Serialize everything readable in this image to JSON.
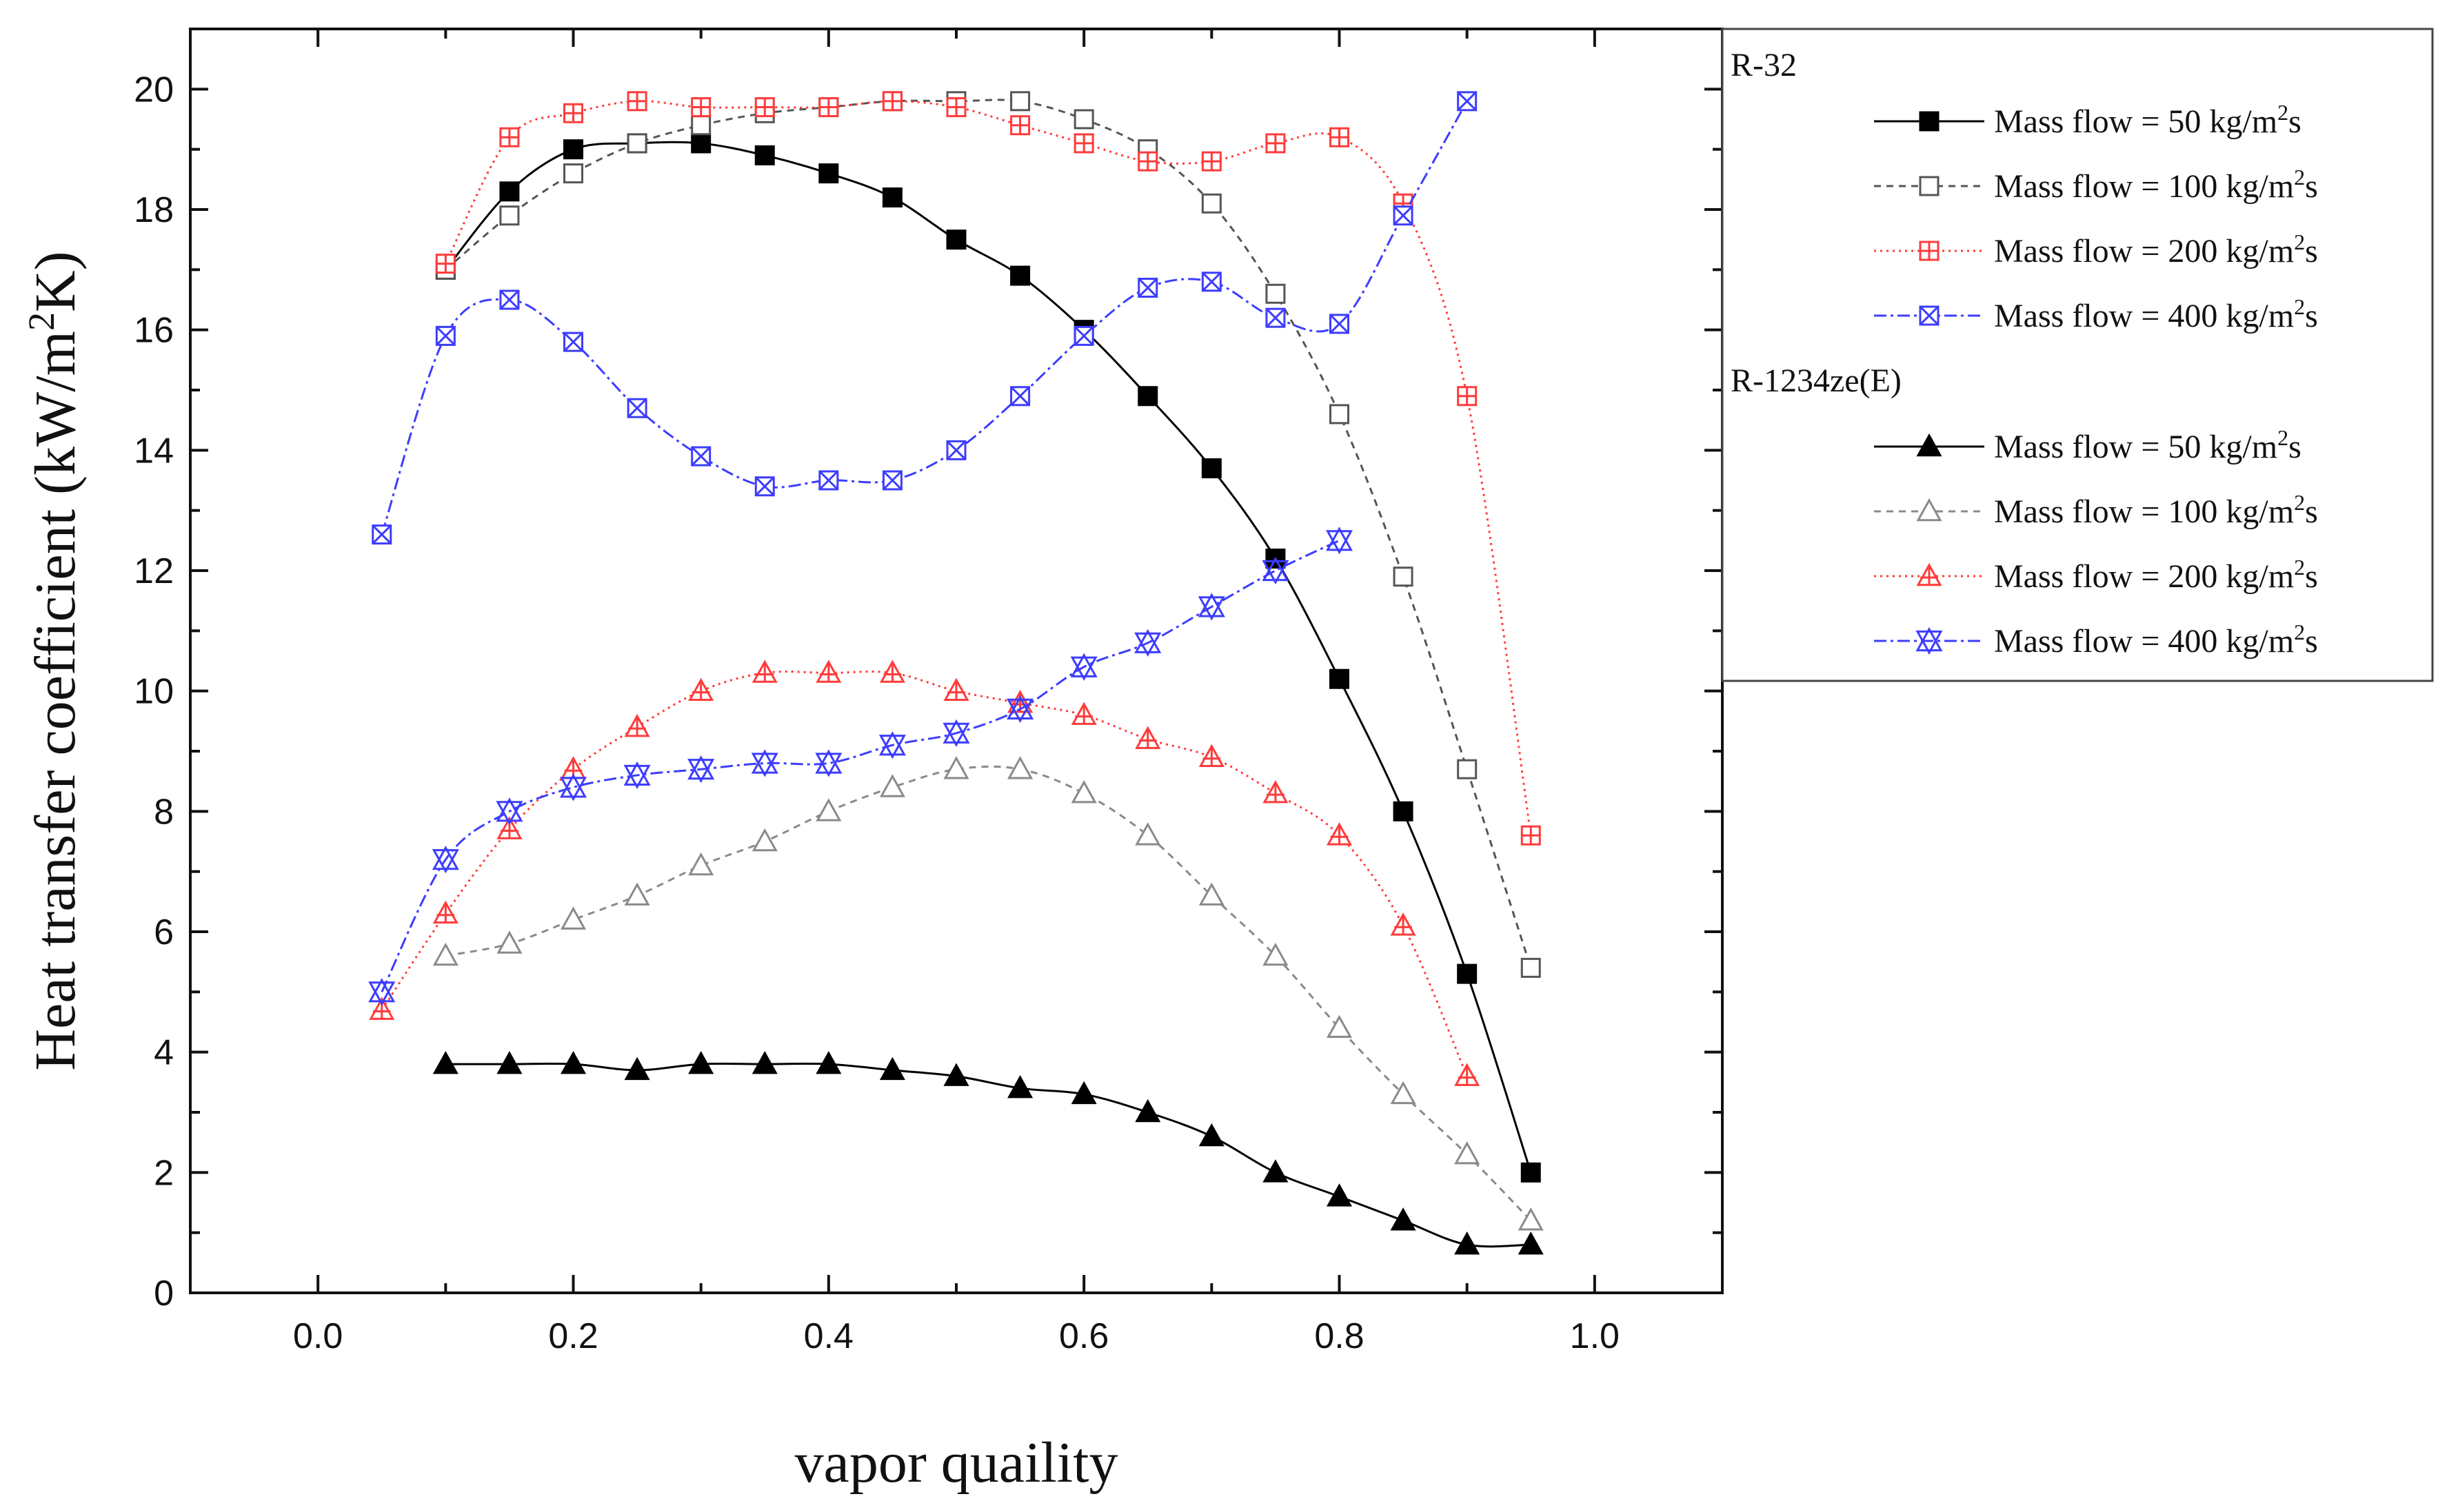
{
  "chart_data": {
    "type": "line",
    "title": "",
    "xlabel": "vapor quaility",
    "ylabel": "Heat transfer coefficient (kW/m2K)",
    "ylabel_parts": [
      "Heat transfer coefficient (kW/m",
      "2",
      "K)"
    ],
    "xlim": [
      -0.1,
      1.1
    ],
    "ylim": [
      0,
      21
    ],
    "x_ticks": [
      0.0,
      0.2,
      0.4,
      0.6,
      0.8,
      1.0
    ],
    "x_tick_labels": [
      "0.0",
      "0.2",
      "0.4",
      "0.6",
      "0.8",
      "1.0"
    ],
    "y_ticks": [
      0,
      2,
      4,
      6,
      8,
      10,
      12,
      14,
      16,
      18,
      20
    ],
    "y_tick_labels": [
      "0",
      "2",
      "4",
      "6",
      "8",
      "10",
      "12",
      "14",
      "16",
      "18",
      "20"
    ],
    "grid": false,
    "legend_position": "right-top",
    "legend_groups": [
      {
        "title": "R-32",
        "series": [
          0,
          1,
          2,
          3
        ]
      },
      {
        "title": "R-1234ze(E)",
        "series": [
          4,
          5,
          6,
          7
        ]
      }
    ],
    "series": [
      {
        "name": "Mass flow = 50 kg/m2s",
        "label_parts": [
          "Mass flow = 50 kg/m",
          "2",
          "s"
        ],
        "fluid": "R-32",
        "color": "#000000",
        "dash": "",
        "marker": "square-filled",
        "x": [
          0.1,
          0.15,
          0.2,
          0.25,
          0.3,
          0.35,
          0.4,
          0.45,
          0.5,
          0.55,
          0.6,
          0.65,
          0.7,
          0.75,
          0.8,
          0.85,
          0.9,
          0.95
        ],
        "values": [
          17.0,
          18.3,
          19.0,
          19.1,
          19.1,
          18.9,
          18.6,
          18.2,
          17.5,
          16.9,
          16.0,
          14.9,
          13.7,
          12.2,
          10.2,
          8.0,
          5.3,
          2.0
        ]
      },
      {
        "name": "Mass flow = 100 kg/m2s",
        "label_parts": [
          "Mass flow = 100 kg/m",
          "2",
          "s"
        ],
        "fluid": "R-32",
        "color": "#555555",
        "dash": "10,8",
        "marker": "square-open",
        "x": [
          0.1,
          0.15,
          0.2,
          0.25,
          0.3,
          0.35,
          0.4,
          0.45,
          0.5,
          0.55,
          0.6,
          0.65,
          0.7,
          0.75,
          0.8,
          0.85,
          0.9,
          0.95
        ],
        "values": [
          17.0,
          17.9,
          18.6,
          19.1,
          19.4,
          19.6,
          19.7,
          19.8,
          19.8,
          19.8,
          19.5,
          19.0,
          18.1,
          16.6,
          14.6,
          11.9,
          8.7,
          5.4
        ]
      },
      {
        "name": "Mass flow = 200 kg/m2s",
        "label_parts": [
          "Mass flow = 200 kg/m",
          "2",
          "s"
        ],
        "fluid": "R-32",
        "color": "#ff3b3b",
        "dash": "3,6",
        "marker": "square-plus",
        "x": [
          0.1,
          0.15,
          0.2,
          0.25,
          0.3,
          0.35,
          0.4,
          0.45,
          0.5,
          0.55,
          0.6,
          0.65,
          0.7,
          0.75,
          0.8,
          0.85,
          0.9,
          0.95
        ],
        "values": [
          17.1,
          19.2,
          19.6,
          19.8,
          19.7,
          19.7,
          19.7,
          19.8,
          19.7,
          19.4,
          19.1,
          18.8,
          18.8,
          19.1,
          19.2,
          18.1,
          14.9,
          7.6
        ]
      },
      {
        "name": "Mass flow = 400 kg/m2s",
        "label_parts": [
          "Mass flow = 400 kg/m",
          "2",
          "s"
        ],
        "fluid": "R-32",
        "color": "#3d3dff",
        "dash": "18,6,4,6",
        "marker": "square-x",
        "x": [
          0.05,
          0.1,
          0.15,
          0.2,
          0.25,
          0.3,
          0.35,
          0.4,
          0.45,
          0.5,
          0.55,
          0.6,
          0.65,
          0.7,
          0.75,
          0.8,
          0.85,
          0.9
        ],
        "values": [
          12.6,
          15.9,
          16.5,
          15.8,
          14.7,
          13.9,
          13.4,
          13.5,
          13.5,
          14.0,
          14.9,
          15.9,
          16.7,
          16.8,
          16.2,
          16.1,
          17.9,
          19.8
        ]
      },
      {
        "name": "Mass flow = 50 kg/m2s",
        "label_parts": [
          "Mass flow = 50 kg/m",
          "2",
          "s"
        ],
        "fluid": "R-1234ze(E)",
        "color": "#000000",
        "dash": "",
        "marker": "triangle-filled",
        "x": [
          0.1,
          0.15,
          0.2,
          0.25,
          0.3,
          0.35,
          0.4,
          0.45,
          0.5,
          0.55,
          0.6,
          0.65,
          0.7,
          0.75,
          0.8,
          0.85,
          0.9,
          0.95
        ],
        "values": [
          3.8,
          3.8,
          3.8,
          3.7,
          3.8,
          3.8,
          3.8,
          3.7,
          3.6,
          3.4,
          3.3,
          3.0,
          2.6,
          2.0,
          1.6,
          1.2,
          0.8,
          0.8
        ]
      },
      {
        "name": "Mass flow = 100 kg/m2s",
        "label_parts": [
          "Mass flow = 100 kg/m",
          "2",
          "s"
        ],
        "fluid": "R-1234ze(E)",
        "color": "#8a8a8a",
        "dash": "10,8",
        "marker": "triangle-open",
        "x": [
          0.1,
          0.15,
          0.2,
          0.25,
          0.3,
          0.35,
          0.4,
          0.45,
          0.5,
          0.55,
          0.6,
          0.65,
          0.7,
          0.75,
          0.8,
          0.85,
          0.9,
          0.95
        ],
        "values": [
          5.6,
          5.8,
          6.2,
          6.6,
          7.1,
          7.5,
          8.0,
          8.4,
          8.7,
          8.7,
          8.3,
          7.6,
          6.6,
          5.6,
          4.4,
          3.3,
          2.3,
          1.2
        ]
      },
      {
        "name": "Mass flow = 200 kg/m2s",
        "label_parts": [
          "Mass flow = 200 kg/m",
          "2",
          "s"
        ],
        "fluid": "R-1234ze(E)",
        "color": "#ff3b3b",
        "dash": "3,6",
        "marker": "triangle-plus",
        "x": [
          0.05,
          0.1,
          0.15,
          0.2,
          0.25,
          0.3,
          0.35,
          0.4,
          0.45,
          0.5,
          0.55,
          0.6,
          0.65,
          0.7,
          0.75,
          0.8,
          0.85,
          0.9
        ],
        "values": [
          4.7,
          6.3,
          7.7,
          8.7,
          9.4,
          10.0,
          10.3,
          10.3,
          10.3,
          10.0,
          9.8,
          9.6,
          9.2,
          8.9,
          8.3,
          7.6,
          6.1,
          3.6
        ]
      },
      {
        "name": "Mass flow = 400 kg/m2s",
        "label_parts": [
          "Mass flow = 400 kg/m",
          "2",
          "s"
        ],
        "fluid": "R-1234ze(E)",
        "color": "#3d3dff",
        "dash": "18,6,4,6",
        "marker": "star-x",
        "x": [
          0.05,
          0.1,
          0.15,
          0.2,
          0.25,
          0.3,
          0.35,
          0.4,
          0.45,
          0.5,
          0.55,
          0.6,
          0.65,
          0.7,
          0.75,
          0.8
        ],
        "values": [
          5.0,
          7.2,
          8.0,
          8.4,
          8.6,
          8.7,
          8.8,
          8.8,
          9.1,
          9.3,
          9.7,
          10.4,
          10.8,
          11.4,
          12.0,
          12.5
        ]
      }
    ]
  }
}
